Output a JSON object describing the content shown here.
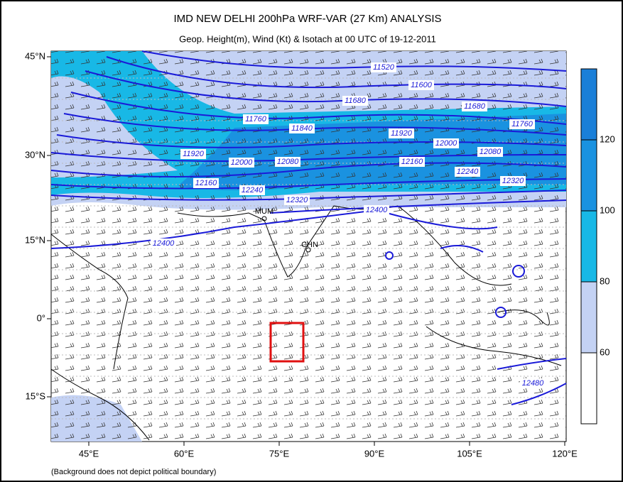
{
  "title": "IMD NEW DELHI 200hPa WRF-VAR (27 Km) ANALYSIS",
  "subtitle": "Geop. Height(m), Wind (Kt) & Isotach  at 00 UTC of 19-12-2011",
  "lat_labels": [
    "45°N",
    "30°N",
    "15°N",
    "0°",
    "15°S"
  ],
  "lon_labels": [
    "45°E",
    "60°E",
    "75°E",
    "90°E",
    "105°E",
    "120°E"
  ],
  "colorbar": {
    "lim": [
      40,
      140
    ],
    "ticks": [
      60,
      80,
      100,
      120
    ],
    "colors": [
      "#ffffff",
      "#c4d2f4",
      "#18b8e6",
      "#1a92e0",
      "#1a7fd8"
    ]
  },
  "contour_labels": [
    "11520",
    "11600",
    "11680",
    "11680",
    "11760",
    "11760",
    "11840",
    "11920",
    "11920",
    "12000",
    "12000",
    "12080",
    "12080",
    "12160",
    "12160",
    "12240",
    "12240",
    "12320",
    "12320",
    "12400",
    "12400",
    "12480"
  ],
  "stations": [
    "MUM",
    "CHN"
  ],
  "footnote": "(Background does not depict political boundary)"
}
